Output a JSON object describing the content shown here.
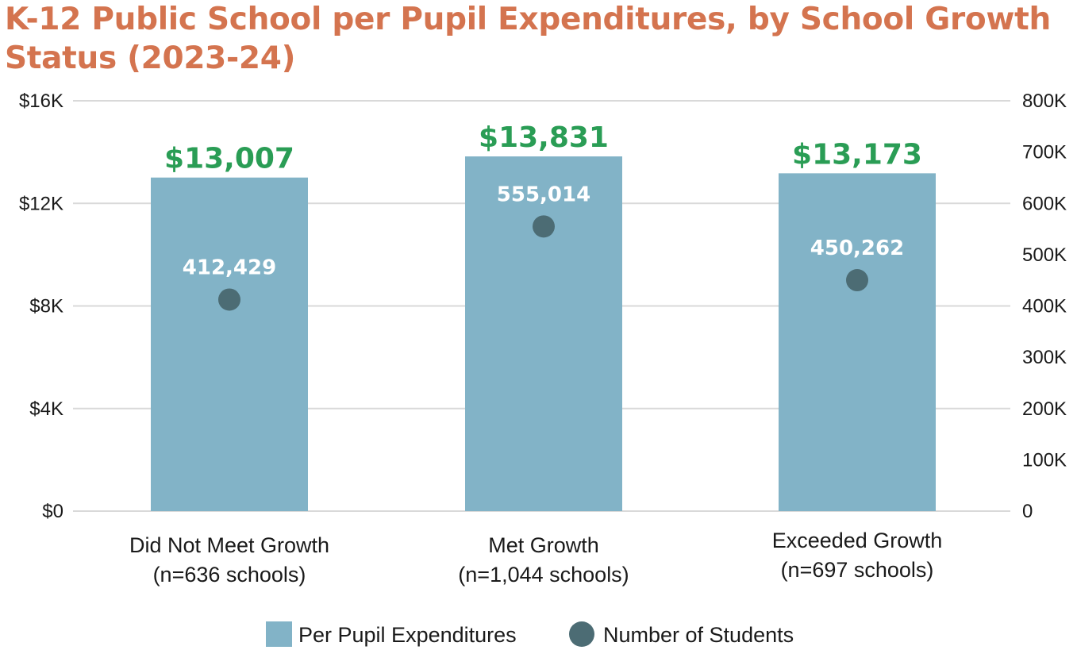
{
  "chart_data": {
    "type": "bar",
    "title": "K-12 Public School per Pupil Expenditures, by School Growth Status (2023-24)",
    "categories": [
      [
        "Did Not Meet Growth",
        "(n=636 schools)"
      ],
      [
        "Met Growth",
        "(n=1,044 schools)"
      ],
      [
        "Exceeded Growth",
        "(n=697 schools)"
      ]
    ],
    "series": [
      {
        "name": "Per Pupil Expenditures",
        "kind": "bar",
        "axis": "left",
        "values": [
          13007,
          13831,
          13173
        ],
        "labels": [
          "$13,007",
          "$13,831",
          "$13,173"
        ]
      },
      {
        "name": "Number of Students",
        "kind": "point",
        "axis": "right",
        "values": [
          412429,
          555014,
          450262
        ],
        "labels": [
          "412,429",
          "555,014",
          "450,262"
        ]
      }
    ],
    "y_left": {
      "lim": [
        0,
        16000
      ],
      "ticks": [
        0,
        4000,
        8000,
        12000,
        16000
      ],
      "tick_labels": [
        "$0",
        "$4K",
        "$8K",
        "$12K",
        "$16K"
      ]
    },
    "y_right": {
      "lim": [
        0,
        800000
      ],
      "ticks": [
        0,
        100000,
        200000,
        300000,
        400000,
        500000,
        600000,
        700000,
        800000
      ],
      "tick_labels": [
        "0",
        "100K",
        "200K",
        "300K",
        "400K",
        "500K",
        "600K",
        "700K",
        "800K"
      ]
    },
    "grid": true,
    "legend": "bottom-center",
    "colors": {
      "title": "#d4744f",
      "bar": "#82b3c7",
      "point": "#4c6c74",
      "bar_label": "#2a9d55",
      "point_label": "#ffffff",
      "grid": "#d9d9d9",
      "text": "#1a1a1a"
    }
  }
}
